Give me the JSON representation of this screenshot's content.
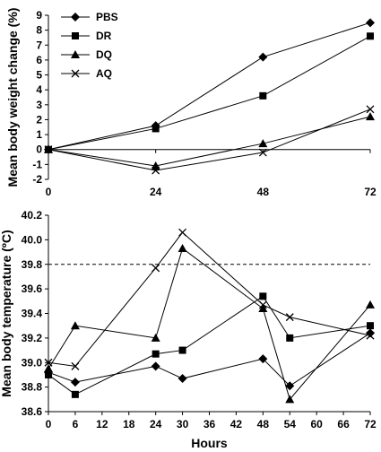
{
  "chart_data": [
    {
      "type": "line",
      "title": "",
      "xlabel": "",
      "ylabel": "Mean body weight change (%)",
      "x": [
        0,
        24,
        48,
        72
      ],
      "xticks": [
        "0",
        "24",
        "48",
        "72"
      ],
      "ylim": [
        -2,
        9
      ],
      "yticks": [
        "-2",
        "-1",
        "0",
        "1",
        "2",
        "3",
        "4",
        "5",
        "6",
        "7",
        "8",
        "9"
      ],
      "zero_line": true,
      "legend_position": "top-left",
      "series": [
        {
          "name": "PBS",
          "marker": "diamond",
          "values": [
            0,
            1.6,
            6.2,
            8.5
          ]
        },
        {
          "name": "DR",
          "marker": "square",
          "values": [
            0,
            1.4,
            3.6,
            7.6
          ]
        },
        {
          "name": "DQ",
          "marker": "triangle",
          "values": [
            0,
            -1.1,
            0.4,
            2.2
          ]
        },
        {
          "name": "AQ",
          "marker": "x",
          "values": [
            0,
            -1.4,
            -0.2,
            2.7
          ]
        }
      ]
    },
    {
      "type": "line",
      "title": "",
      "xlabel": "Hours",
      "ylabel": "Mean body temperature (ºC)",
      "x": [
        0,
        6,
        24,
        30,
        48,
        54,
        72
      ],
      "xticks": [
        "0",
        "6",
        "12",
        "18",
        "24",
        "30",
        "36",
        "42",
        "48",
        "54",
        "60",
        "66",
        "72"
      ],
      "ylim": [
        38.6,
        40.2
      ],
      "yticks": [
        "38.6",
        "38.8",
        "39.0",
        "39.2",
        "39.4",
        "39.6",
        "39.8",
        "40.0",
        "40.2"
      ],
      "threshold": 39.8,
      "series": [
        {
          "name": "PBS",
          "marker": "diamond",
          "values": [
            38.92,
            38.84,
            38.97,
            38.87,
            39.03,
            38.81,
            39.24
          ]
        },
        {
          "name": "DR",
          "marker": "square",
          "values": [
            38.9,
            38.74,
            39.07,
            39.1,
            39.54,
            39.2,
            39.3
          ]
        },
        {
          "name": "DQ",
          "marker": "triangle",
          "values": [
            38.95,
            39.3,
            39.2,
            39.93,
            39.44,
            38.7,
            39.47
          ]
        },
        {
          "name": "AQ",
          "marker": "x",
          "values": [
            39.0,
            38.97,
            39.77,
            40.06,
            39.47,
            39.37,
            39.22
          ]
        }
      ]
    }
  ]
}
